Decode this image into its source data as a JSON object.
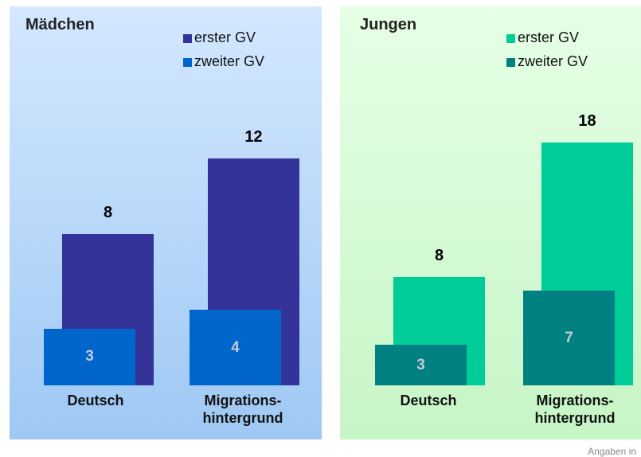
{
  "chart_data": [
    {
      "type": "bar",
      "title": "Mädchen",
      "categories": [
        "Deutsch",
        "Migrations-\nhintergrund"
      ],
      "ylim": [
        0,
        20
      ],
      "series": [
        {
          "name": "erster GV",
          "color": "#333399",
          "values": [
            8,
            12
          ]
        },
        {
          "name": "zweiter GV",
          "color": "#0066cc",
          "values": [
            3,
            4
          ]
        }
      ]
    },
    {
      "type": "bar",
      "title": "Jungen",
      "categories": [
        "Deutsch",
        "Migrations-\nhintergrund"
      ],
      "ylim": [
        0,
        28
      ],
      "series": [
        {
          "name": "erster GV",
          "color": "#00cc99",
          "values": [
            8,
            18
          ]
        },
        {
          "name": "zweiter GV",
          "color": "#008080",
          "values": [
            3,
            7
          ]
        }
      ]
    }
  ],
  "footnote": "Angaben in"
}
